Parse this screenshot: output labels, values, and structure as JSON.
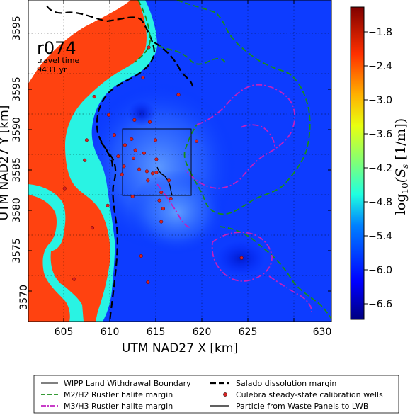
{
  "map": {
    "run_id": "r074",
    "travel_time_label": "travel time",
    "travel_time_value": "9431 yr",
    "x_axis_label": "UTM NAD27 X [km]",
    "y_axis_label": "UTM NAD27 Y [km]",
    "x_ticks": [
      "605",
      "610",
      "615",
      "620",
      "625",
      "630"
    ],
    "y_ticks": [
      "3570",
      "3575",
      "3580",
      "3585",
      "3590",
      "3595"
    ]
  },
  "colorbar": {
    "label_prefix": "log",
    "label_sub": "10",
    "label_rest": "(S",
    "label_sub2": "s",
    "label_units": " [1/m])",
    "ticks": [
      "−1.8",
      "−2.4",
      "−3.0",
      "−3.6",
      "−4.2",
      "−4.8",
      "−5.4",
      "−6.0",
      "−6.6"
    ],
    "colors": [
      "#7f0000",
      "#ff3000",
      "#ff9f00",
      "#ecff0a",
      "#84ff73",
      "#24ffd3",
      "#00a0ff",
      "#0018ff",
      "#00007f"
    ]
  },
  "legend": {
    "items": [
      {
        "label": "WIPP Land Withdrawal Boundary",
        "color": "#000000",
        "style": "solid-thin"
      },
      {
        "label": "Salado dissolution margin",
        "color": "#000000",
        "style": "dashed-thick"
      },
      {
        "label": "M2/H2 Rustler halite margin",
        "color": "#1a8c1a",
        "style": "dashed"
      },
      {
        "label": "Culebra steady-state calibration wells",
        "color": "#d62222",
        "style": "dot"
      },
      {
        "label": "M3/H3 Rustler halite margin",
        "color": "#c020c0",
        "style": "dashdot"
      },
      {
        "label": "Particle from Waste Panels to LWB",
        "color": "#000000",
        "style": "solid"
      }
    ]
  },
  "wells": [
    [
      613.8,
      3593.3
    ],
    [
      613.2,
      3590.3
    ],
    [
      608.1,
      3588.4
    ],
    [
      616.9,
      3588.6
    ],
    [
      609.6,
      3586.6
    ],
    [
      612.3,
      3586.1
    ],
    [
      613.9,
      3585.9
    ],
    [
      610.2,
      3584.6
    ],
    [
      607.3,
      3584.1
    ],
    [
      612.0,
      3584.2
    ],
    [
      614.5,
      3584.1
    ],
    [
      618.8,
      3584.0
    ],
    [
      611.3,
      3583.6
    ],
    [
      612.4,
      3583.1
    ],
    [
      613.3,
      3582.8
    ],
    [
      610.6,
      3582.5
    ],
    [
      612.2,
      3582.3
    ],
    [
      614.6,
      3582.2
    ],
    [
      607.1,
      3582.1
    ],
    [
      611.2,
      3581.5
    ],
    [
      612.8,
      3581.2
    ],
    [
      613.6,
      3581.0
    ],
    [
      614.2,
      3580.8
    ],
    [
      614.6,
      3580.9
    ],
    [
      611.0,
      3580.7
    ],
    [
      615.9,
      3580.1
    ],
    [
      613.7,
      3580.1
    ],
    [
      615.1,
      3578.9
    ],
    [
      614.9,
      3578.1
    ],
    [
      615.3,
      3577.3
    ],
    [
      612.1,
      3578.5
    ],
    [
      616.1,
      3578.3
    ],
    [
      605.0,
      3579.3
    ],
    [
      609.5,
      3577.6
    ],
    [
      615.1,
      3576.0
    ],
    [
      607.9,
      3575.4
    ],
    [
      613.0,
      3572.6
    ],
    [
      623.5,
      3572.4
    ],
    [
      606.0,
      3570.3
    ],
    [
      613.7,
      3570.0
    ]
  ]
}
